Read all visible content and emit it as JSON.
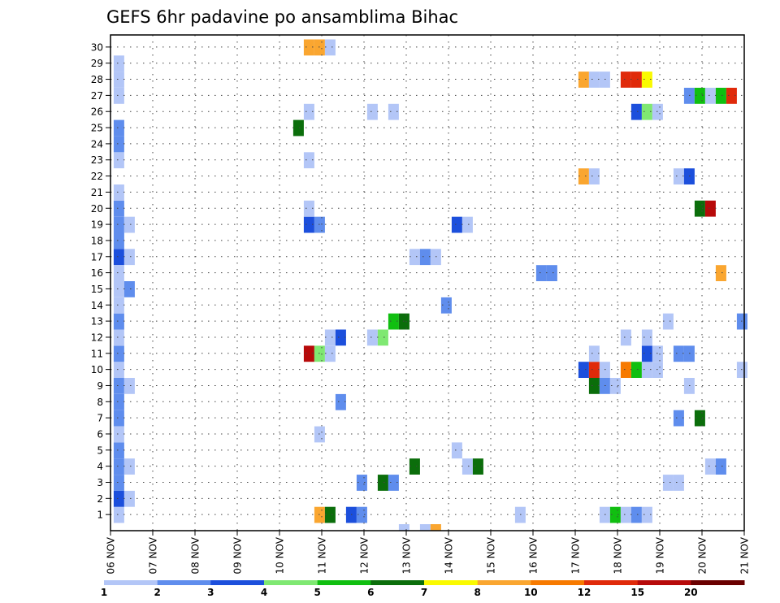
{
  "chart_data": {
    "type": "heatmap",
    "title": "GEFS 6hr padavine po ansamblima Bihac",
    "xlabel": "",
    "ylabel": "",
    "x_range": [
      "06 NOV",
      "21 NOV"
    ],
    "x_tick_labels": [
      "06 NOV",
      "07 NOV",
      "08 NOV",
      "09 NOV",
      "10 NOV",
      "11 NOV",
      "12 NOV",
      "13 NOV",
      "14 NOV",
      "15 NOV",
      "16 NOV",
      "17 NOV",
      "18 NOV",
      "19 NOV",
      "20 NOV",
      "21 NOV"
    ],
    "y_range": [
      0,
      30
    ],
    "y_tick_labels": [
      "1",
      "2",
      "3",
      "4",
      "5",
      "6",
      "7",
      "8",
      "9",
      "10",
      "11",
      "12",
      "13",
      "14",
      "15",
      "16",
      "17",
      "18",
      "19",
      "20",
      "21",
      "22",
      "23",
      "24",
      "25",
      "26",
      "27",
      "28",
      "29",
      "30"
    ],
    "grid": true,
    "colorbar": {
      "placement": "bottom",
      "labels": [
        "1",
        "2",
        "3",
        "4",
        "5",
        "6",
        "7",
        "8",
        "10",
        "12",
        "15",
        "20"
      ],
      "colors": [
        "#b3c6f7",
        "#5f8ded",
        "#1c4fdc",
        "#7fe872",
        "#10bf10",
        "#0b6e0b",
        "#fafa00",
        "#faa630",
        "#f77a00",
        "#e02a0a",
        "#b70a0a",
        "#6a0000"
      ]
    },
    "cells": [
      {
        "t": 0.2,
        "m": 0,
        "v": 1
      },
      {
        "t": 0.2,
        "m": 1,
        "v": 3
      },
      {
        "t": 0.2,
        "m": 2,
        "v": 2
      },
      {
        "t": 0.2,
        "m": 3,
        "v": 2
      },
      {
        "t": 0.2,
        "m": 4,
        "v": 2
      },
      {
        "t": 0.2,
        "m": 5,
        "v": 1
      },
      {
        "t": 0.2,
        "m": 6,
        "v": 2
      },
      {
        "t": 0.2,
        "m": 7,
        "v": 2
      },
      {
        "t": 0.2,
        "m": 8,
        "v": 2
      },
      {
        "t": 0.2,
        "m": 9,
        "v": 1
      },
      {
        "t": 0.2,
        "m": 10,
        "v": 2
      },
      {
        "t": 0.2,
        "m": 11,
        "v": 1
      },
      {
        "t": 0.2,
        "m": 12,
        "v": 2
      },
      {
        "t": 0.2,
        "m": 13,
        "v": 1
      },
      {
        "t": 0.2,
        "m": 14,
        "v": 1
      },
      {
        "t": 0.2,
        "m": 15,
        "v": 1
      },
      {
        "t": 0.2,
        "m": 16,
        "v": 3
      },
      {
        "t": 0.2,
        "m": 17,
        "v": 2
      },
      {
        "t": 0.2,
        "m": 18,
        "v": 2
      },
      {
        "t": 0.2,
        "m": 19,
        "v": 2
      },
      {
        "t": 0.2,
        "m": 20,
        "v": 1
      },
      {
        "t": 0.2,
        "m": 22,
        "v": 1
      },
      {
        "t": 0.2,
        "m": 23,
        "v": 2
      },
      {
        "t": 0.2,
        "m": 24,
        "v": 2
      },
      {
        "t": 0.2,
        "m": 26,
        "v": 1
      },
      {
        "t": 0.2,
        "m": 27,
        "v": 1
      },
      {
        "t": 0.2,
        "m": 28,
        "v": 1
      },
      {
        "t": 0.45,
        "m": 1,
        "v": 1
      },
      {
        "t": 0.45,
        "m": 3,
        "v": 1
      },
      {
        "t": 0.45,
        "m": 8,
        "v": 1
      },
      {
        "t": 0.45,
        "m": 14,
        "v": 2
      },
      {
        "t": 0.45,
        "m": 16,
        "v": 1
      },
      {
        "t": 0.45,
        "m": 18,
        "v": 1
      },
      {
        "t": 4.45,
        "m": 24,
        "v": 6
      },
      {
        "t": 4.7,
        "m": 10,
        "v": 15
      },
      {
        "t": 4.7,
        "m": 18,
        "v": 3
      },
      {
        "t": 4.7,
        "m": 19,
        "v": 1
      },
      {
        "t": 4.7,
        "m": 22,
        "v": 1
      },
      {
        "t": 4.7,
        "m": 25,
        "v": 1
      },
      {
        "t": 4.7,
        "m": 29,
        "v": 9
      },
      {
        "t": 4.95,
        "m": 0,
        "v": 8
      },
      {
        "t": 4.95,
        "m": 5,
        "v": 1
      },
      {
        "t": 4.95,
        "m": 10,
        "v": 4
      },
      {
        "t": 4.95,
        "m": 18,
        "v": 2
      },
      {
        "t": 4.95,
        "m": 29,
        "v": 9
      },
      {
        "t": 5.2,
        "m": 0,
        "v": 6
      },
      {
        "t": 5.2,
        "m": 10,
        "v": 1
      },
      {
        "t": 5.2,
        "m": 11,
        "v": 1
      },
      {
        "t": 5.2,
        "m": 29,
        "v": 1
      },
      {
        "t": 5.45,
        "m": 7,
        "v": 2
      },
      {
        "t": 5.45,
        "m": 11,
        "v": 3
      },
      {
        "t": 5.7,
        "m": 0,
        "v": 3
      },
      {
        "t": 5.95,
        "m": 0,
        "v": 2
      },
      {
        "t": 5.95,
        "m": 2,
        "v": 2
      },
      {
        "t": 6.2,
        "m": 11,
        "v": 1
      },
      {
        "t": 6.2,
        "m": 25,
        "v": 1
      },
      {
        "t": 6.45,
        "m": 2,
        "v": 6
      },
      {
        "t": 6.45,
        "m": 11,
        "v": 4
      },
      {
        "t": 6.7,
        "m": 2,
        "v": 2
      },
      {
        "t": 6.7,
        "m": 12,
        "v": 5
      },
      {
        "t": 6.7,
        "m": 25,
        "v": 1
      },
      {
        "t": 6.95,
        "m": 12,
        "v": 6
      },
      {
        "t": 6.95,
        "m": -1,
        "v": 1
      },
      {
        "t": 7.2,
        "m": 3,
        "v": 6
      },
      {
        "t": 7.2,
        "m": 16,
        "v": 1
      },
      {
        "t": 7.45,
        "m": 16,
        "v": 2
      },
      {
        "t": 7.7,
        "m": 16,
        "v": 1
      },
      {
        "t": 7.45,
        "m": -1,
        "v": 1
      },
      {
        "t": 7.7,
        "m": -1,
        "v": 8
      },
      {
        "t": 7.95,
        "m": 13,
        "v": 2
      },
      {
        "t": 8.2,
        "m": 4,
        "v": 1
      },
      {
        "t": 8.2,
        "m": 18,
        "v": 3
      },
      {
        "t": 8.45,
        "m": 3,
        "v": 1
      },
      {
        "t": 8.45,
        "m": 18,
        "v": 1
      },
      {
        "t": 8.7,
        "m": 3,
        "v": 6
      },
      {
        "t": 9.7,
        "m": 0,
        "v": 1
      },
      {
        "t": 10.2,
        "m": 15,
        "v": 2
      },
      {
        "t": 10.45,
        "m": 15,
        "v": 2
      },
      {
        "t": 11.2,
        "m": 9,
        "v": 3
      },
      {
        "t": 11.45,
        "m": 9,
        "v": 12
      },
      {
        "t": 11.2,
        "m": 21,
        "v": 8
      },
      {
        "t": 11.45,
        "m": 21,
        "v": 1
      },
      {
        "t": 11.2,
        "m": 27,
        "v": 8
      },
      {
        "t": 11.45,
        "m": 27,
        "v": 1
      },
      {
        "t": 11.7,
        "m": 27,
        "v": 1
      },
      {
        "t": 11.45,
        "m": 8,
        "v": 6
      },
      {
        "t": 11.7,
        "m": 8,
        "v": 2
      },
      {
        "t": 11.95,
        "m": 8,
        "v": 1
      },
      {
        "t": 11.7,
        "m": 9,
        "v": 1
      },
      {
        "t": 11.45,
        "m": 10,
        "v": 1
      },
      {
        "t": 11.7,
        "m": 0,
        "v": 1
      },
      {
        "t": 11.95,
        "m": 0,
        "v": 5
      },
      {
        "t": 12.2,
        "m": 0,
        "v": 1
      },
      {
        "t": 12.45,
        "m": 0,
        "v": 2
      },
      {
        "t": 12.7,
        "m": 0,
        "v": 1
      },
      {
        "t": 12.2,
        "m": 9,
        "v": 10
      },
      {
        "t": 12.45,
        "m": 9,
        "v": 5
      },
      {
        "t": 12.7,
        "m": 9,
        "v": 1
      },
      {
        "t": 12.95,
        "m": 9,
        "v": 1
      },
      {
        "t": 12.2,
        "m": 11,
        "v": 1
      },
      {
        "t": 12.2,
        "m": 27,
        "v": 12
      },
      {
        "t": 12.45,
        "m": 27,
        "v": 12
      },
      {
        "t": 12.7,
        "m": 27,
        "v": 7
      },
      {
        "t": 12.7,
        "m": 10,
        "v": 3
      },
      {
        "t": 12.7,
        "m": 11,
        "v": 1
      },
      {
        "t": 12.95,
        "m": 10,
        "v": 1
      },
      {
        "t": 12.45,
        "m": 25,
        "v": 3
      },
      {
        "t": 12.7,
        "m": 25,
        "v": 4
      },
      {
        "t": 12.95,
        "m": 25,
        "v": 1
      },
      {
        "t": 13.2,
        "m": 2,
        "v": 1
      },
      {
        "t": 13.45,
        "m": 2,
        "v": 1
      },
      {
        "t": 13.2,
        "m": 12,
        "v": 1
      },
      {
        "t": 13.45,
        "m": 6,
        "v": 2
      },
      {
        "t": 13.45,
        "m": 10,
        "v": 2
      },
      {
        "t": 13.7,
        "m": 10,
        "v": 2
      },
      {
        "t": 13.45,
        "m": 21,
        "v": 1
      },
      {
        "t": 13.7,
        "m": 21,
        "v": 3
      },
      {
        "t": 13.7,
        "m": 8,
        "v": 1
      },
      {
        "t": 13.7,
        "m": 26,
        "v": 2
      },
      {
        "t": 13.95,
        "m": 26,
        "v": 5
      },
      {
        "t": 14.2,
        "m": 26,
        "v": 1
      },
      {
        "t": 14.45,
        "m": 26,
        "v": 5
      },
      {
        "t": 14.7,
        "m": 26,
        "v": 12
      },
      {
        "t": 13.95,
        "m": 6,
        "v": 6
      },
      {
        "t": 13.95,
        "m": 19,
        "v": 6
      },
      {
        "t": 14.2,
        "m": 19,
        "v": 15
      },
      {
        "t": 14.45,
        "m": 15,
        "v": 8
      },
      {
        "t": 14.2,
        "m": 3,
        "v": 1
      },
      {
        "t": 14.45,
        "m": 3,
        "v": 2
      },
      {
        "t": 14.95,
        "m": 9,
        "v": 1
      },
      {
        "t": 14.95,
        "m": 12,
        "v": 2
      }
    ]
  }
}
